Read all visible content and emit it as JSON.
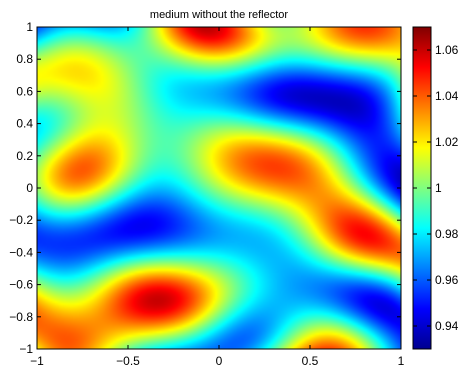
{
  "chart_data": {
    "type": "heatmap",
    "title": "medium without the reflector",
    "xlabel": "",
    "ylabel": "",
    "xlim": [
      -1,
      1
    ],
    "ylim": [
      -1,
      1
    ],
    "x_ticks": [
      "−1",
      "−0.5",
      "0",
      "0.5",
      "1"
    ],
    "x_tick_values": [
      -1,
      -0.5,
      0,
      0.5,
      1
    ],
    "y_ticks": [
      "−1",
      "−0.8",
      "−0.6",
      "−0.4",
      "−0.2",
      "0",
      "0.2",
      "0.4",
      "0.6",
      "0.8",
      "1"
    ],
    "y_tick_values": [
      -1,
      -0.8,
      -0.6,
      -0.4,
      -0.2,
      0,
      0.2,
      0.4,
      0.6,
      0.8,
      1
    ],
    "colorbar": {
      "clim": [
        0.93,
        1.07
      ],
      "colormap": "jet",
      "ticks": [
        "0.94",
        "0.96",
        "0.98",
        "1",
        "1.02",
        "1.04",
        "1.06"
      ],
      "tick_values": [
        0.94,
        0.96,
        0.98,
        1.0,
        1.02,
        1.04,
        1.06
      ]
    },
    "field_description": "random smooth fluctuations around 1 (values roughly 0.93 to 1.07)",
    "grid": false
  }
}
